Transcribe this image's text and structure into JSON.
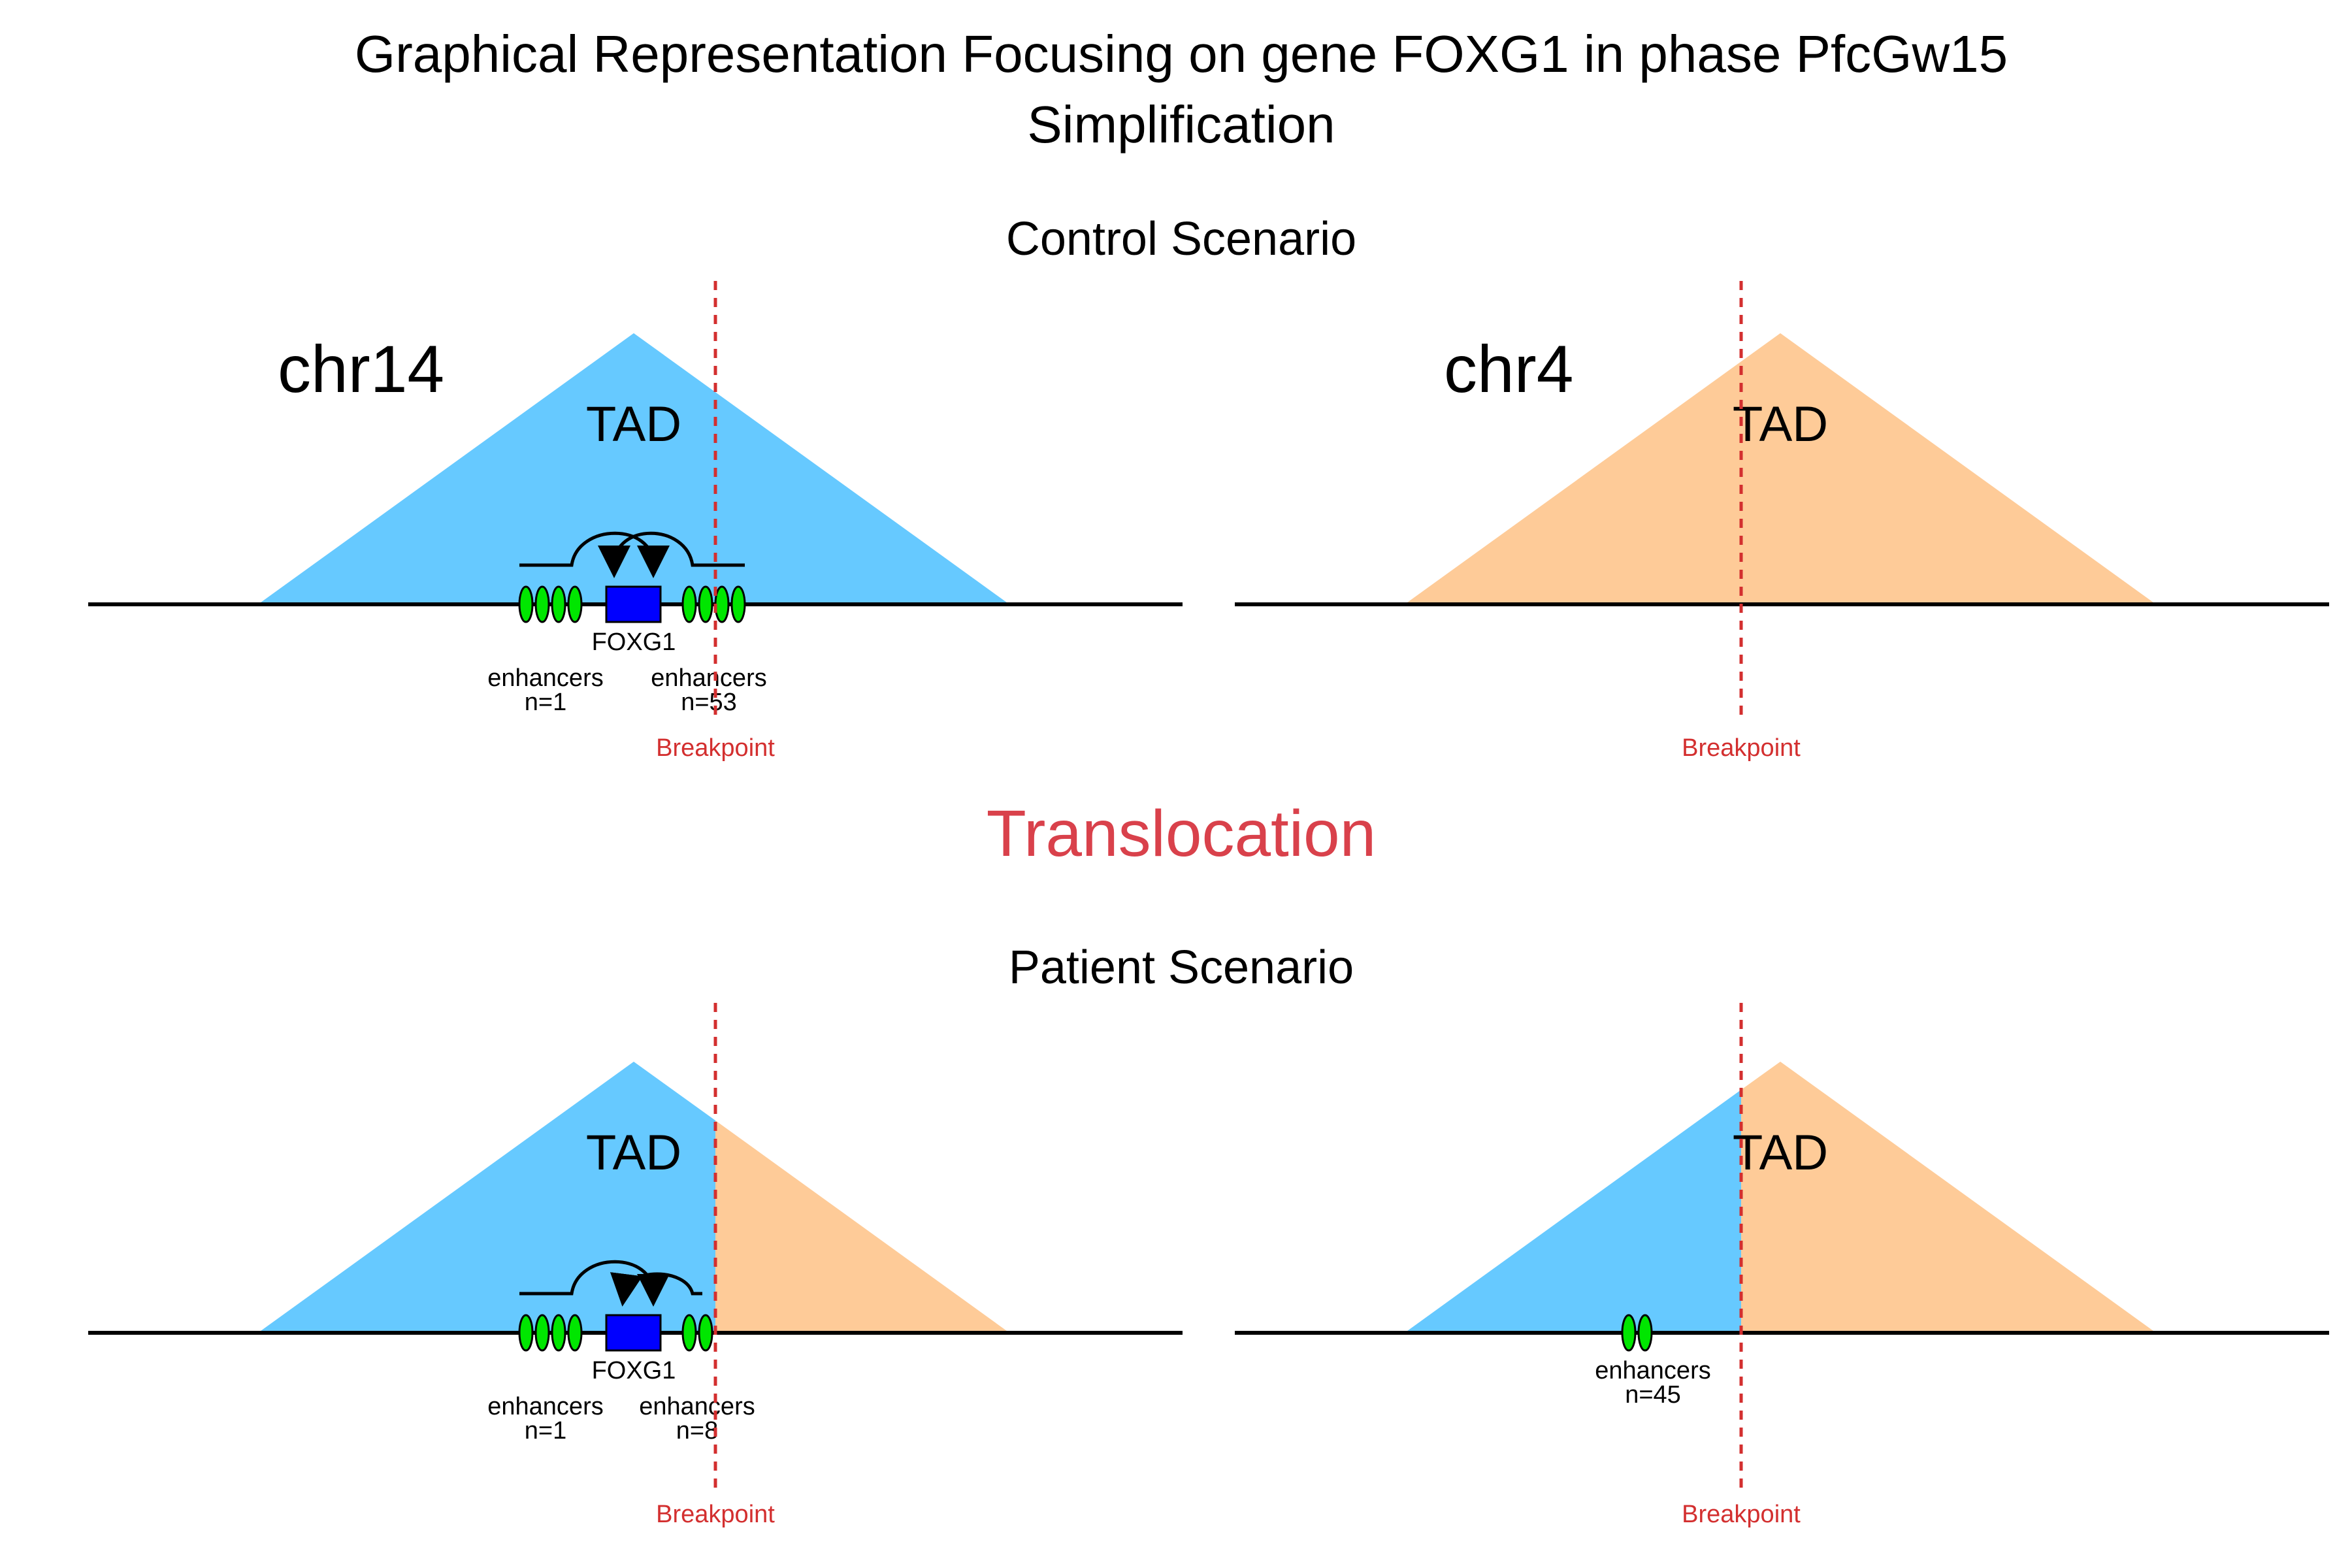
{
  "title": {
    "line1": "Graphical Representation Focusing on gene FOXG1 in phase PfcGw15",
    "line2": "Simplification"
  },
  "colors": {
    "tad_chr14": "#66c9ff",
    "tad_chr4": "#fecb98",
    "gene": "#0000ff",
    "enhancer": "#00e600",
    "breakpoint": "#d32f2f",
    "translocation": "#d9414b",
    "line": "#000000"
  },
  "translocation_label": "Translocation",
  "control": {
    "heading": "Control Scenario",
    "left": {
      "chrom_label": "chr14",
      "tad_label": "TAD",
      "gene_label": "FOXG1",
      "enhancers_left": {
        "label": "enhancers",
        "count": "n=1"
      },
      "enhancers_right": {
        "label": "enhancers",
        "count": "n=53"
      },
      "breakpoint_label": "Breakpoint"
    },
    "right": {
      "chrom_label": "chr4",
      "tad_label": "TAD",
      "breakpoint_label": "Breakpoint"
    }
  },
  "patient": {
    "heading": "Patient Scenario",
    "left": {
      "tad_label": "TAD",
      "gene_label": "FOXG1",
      "enhancers_left": {
        "label": "enhancers",
        "count": "n=1"
      },
      "enhancers_right": {
        "label": "enhancers",
        "count": "n=8"
      },
      "breakpoint_label": "Breakpoint"
    },
    "right": {
      "tad_label": "TAD",
      "enhancers": {
        "label": "enhancers",
        "count": "n=45"
      },
      "breakpoint_label": "Breakpoint"
    }
  }
}
